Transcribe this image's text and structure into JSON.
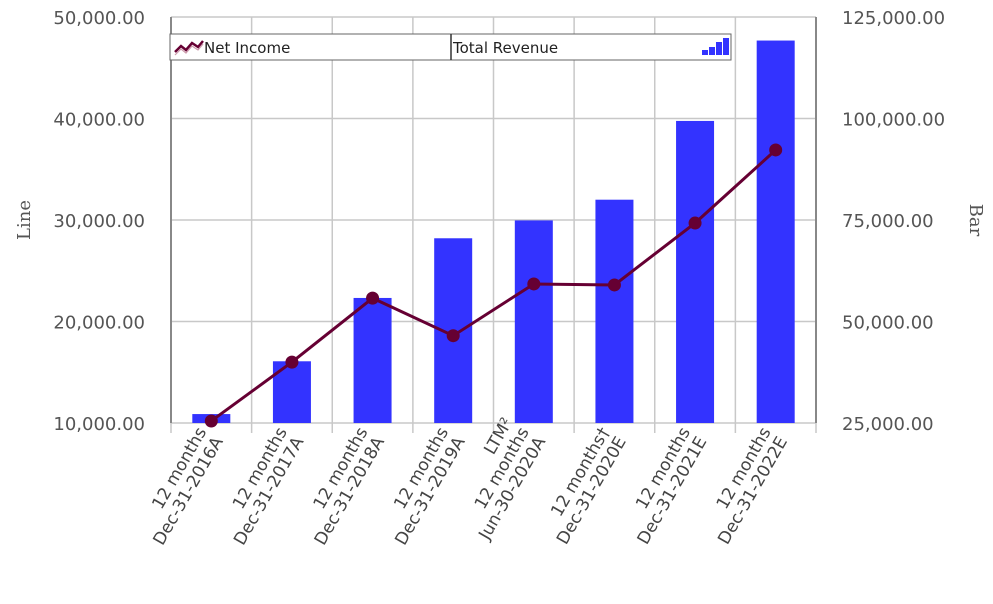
{
  "chart_data": {
    "type": "bar+line",
    "categories": [
      [
        "12 months",
        "Dec-31-2016A"
      ],
      [
        "12 months",
        "Dec-31-2017A"
      ],
      [
        "12 months",
        "Dec-31-2018A"
      ],
      [
        "12 months",
        "Dec-31-2019A"
      ],
      [
        "LTM²",
        "12 months",
        "Jun-30-2020A"
      ],
      [
        "12 months†",
        "Dec-31-2020E"
      ],
      [
        "12 months",
        "Dec-31-2021E"
      ],
      [
        "12 months",
        "Dec-31-2022E"
      ]
    ],
    "series": [
      {
        "name": "Total Revenue",
        "kind": "bar",
        "axis": "right",
        "color": "#3333ff",
        "values": [
          27200,
          40200,
          55800,
          70500,
          74900,
          80000,
          99400,
          119200
        ]
      },
      {
        "name": "Net Income",
        "kind": "line",
        "axis": "left",
        "color": "#660033",
        "values": [
          10200,
          16000,
          22300,
          18600,
          23700,
          23600,
          29700,
          36900
        ]
      }
    ],
    "left_axis": {
      "title": "Line",
      "range": [
        10000,
        50000
      ],
      "ticks": [
        10000,
        20000,
        30000,
        40000,
        50000
      ],
      "tick_labels": [
        "10,000.00",
        "20,000.00",
        "30,000.00",
        "40,000.00",
        "50,000.00"
      ]
    },
    "right_axis": {
      "title": "Bar",
      "range": [
        25000,
        125000
      ],
      "ticks": [
        25000,
        50000,
        75000,
        100000,
        125000
      ],
      "tick_labels": [
        "25,000.00",
        "50,000.00",
        "75,000.00",
        "100,000.00",
        "125,000.00"
      ]
    },
    "grid": true,
    "legend": {
      "position": "top",
      "entries": [
        "Net Income",
        "Total Revenue"
      ]
    }
  }
}
